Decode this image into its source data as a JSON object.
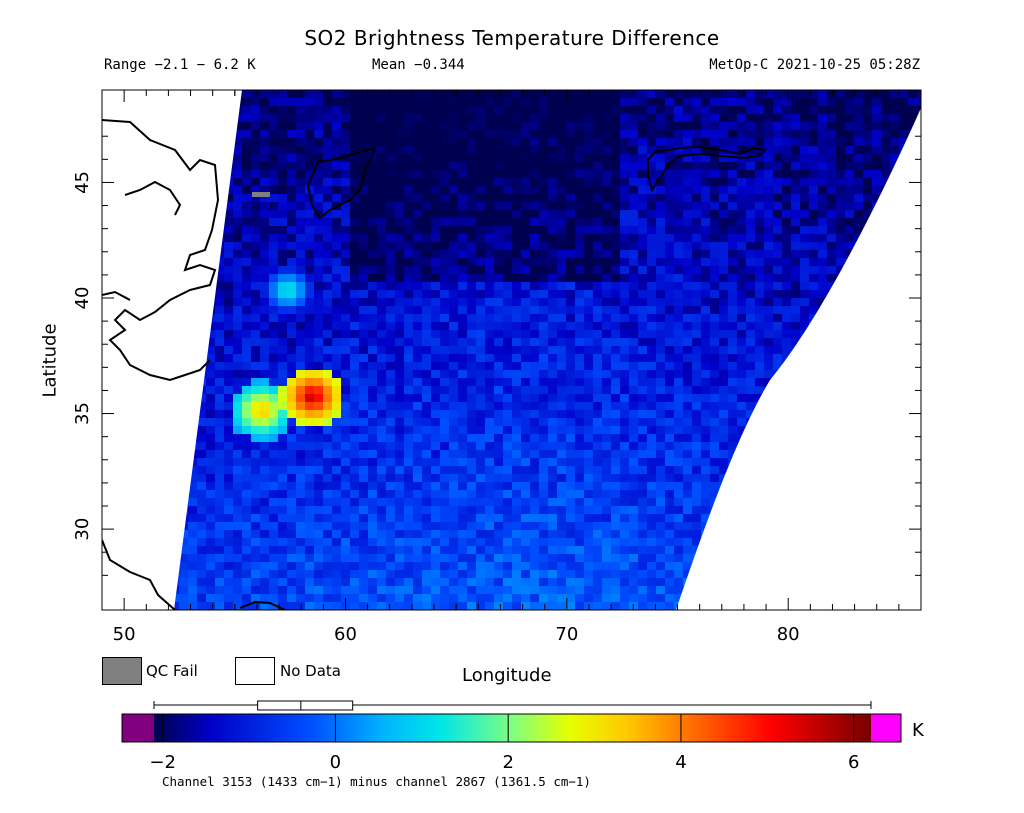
{
  "title": "SO2 Brightness Temperature Difference",
  "header": {
    "range": "Range −2.1 − 6.2 K",
    "mean": "Mean −0.344",
    "satellite_time": "MetOp-C 2021-10-25 05:28Z"
  },
  "axes": {
    "xlabel": "Longitude",
    "ylabel": "Latitude",
    "x_ticks": [
      "50",
      "60",
      "70",
      "80"
    ],
    "y_ticks": [
      "30",
      "35",
      "40",
      "45"
    ],
    "xlim": [
      49,
      86
    ],
    "ylim": [
      26.5,
      49
    ]
  },
  "legend": {
    "qc_fail": "QC Fail",
    "no_data": "No Data",
    "qc_fail_color": "#808080",
    "no_data_color": "#ffffff"
  },
  "colorbar": {
    "unit": "K",
    "ticks": [
      "−2",
      "0",
      "2",
      "4",
      "6"
    ],
    "tick_values": [
      -2,
      0,
      2,
      4,
      6
    ],
    "vmin": -2.1,
    "vmax": 6.2,
    "under_color": "#800080",
    "over_color": "#ff00ff",
    "boxplot": {
      "whisker_low": -2.1,
      "q1": -0.9,
      "median": -0.4,
      "q3": 0.2,
      "whisker_high": 6.2
    }
  },
  "footnote": "Channel 3153 (1433 cm−1) minus channel 2867 (1361.5 cm−1)",
  "chart_data": {
    "type": "heatmap",
    "title": "SO2 Brightness Temperature Difference",
    "xlabel": "Longitude",
    "ylabel": "Latitude",
    "xlim": [
      49,
      86
    ],
    "ylim": [
      26.5,
      49
    ],
    "color_range": [
      -2.1,
      6.2
    ],
    "mean": -0.344,
    "unit": "K",
    "hotspots": [
      {
        "lon": 58.3,
        "lat": 35.9,
        "value": 6.0
      },
      {
        "lon": 56.0,
        "lat": 35.3,
        "value": 3.8
      },
      {
        "lon": 57.2,
        "lat": 40.5,
        "value": 1.5
      }
    ]
  }
}
